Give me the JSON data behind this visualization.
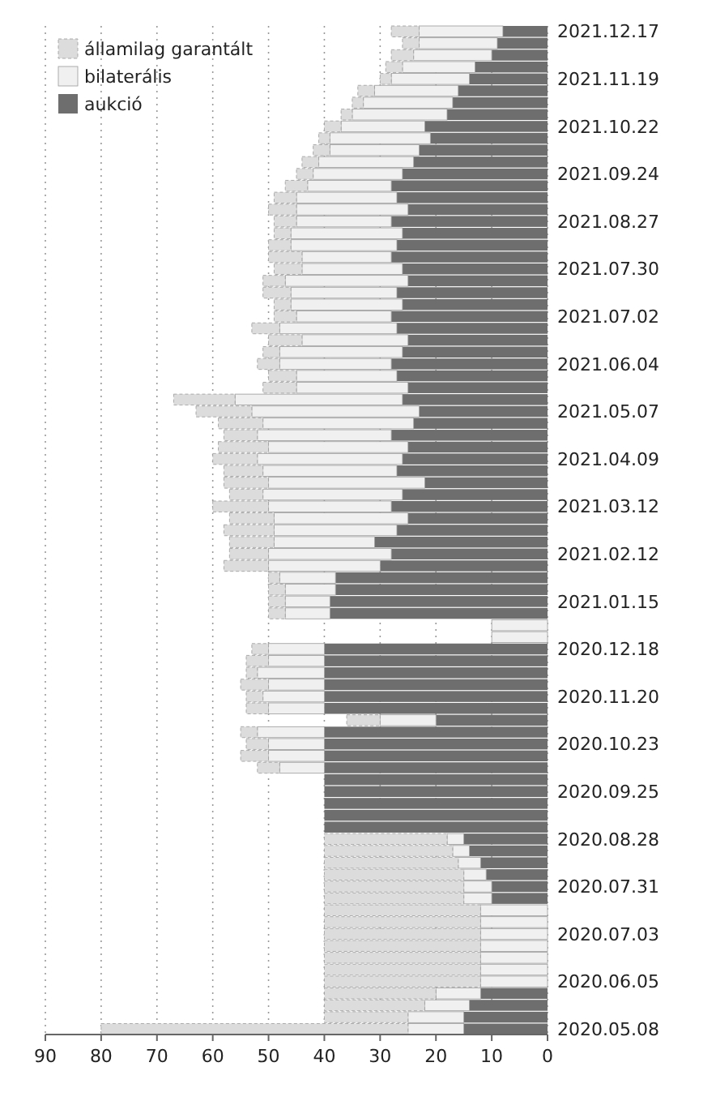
{
  "chart_data": {
    "type": "bar",
    "orientation": "horizontal",
    "stacked": true,
    "categories": [
      "2021.12.17",
      null,
      null,
      null,
      "2021.11.19",
      null,
      null,
      null,
      "2021.10.22",
      null,
      null,
      null,
      "2021.09.24",
      null,
      null,
      null,
      "2021.08.27",
      null,
      null,
      null,
      "2021.07.30",
      null,
      null,
      null,
      "2021.07.02",
      null,
      null,
      null,
      "2021.06.04",
      null,
      null,
      null,
      "2021.05.07",
      null,
      null,
      null,
      "2021.04.09",
      null,
      null,
      null,
      "2021.03.12",
      null,
      null,
      null,
      "2021.02.12",
      null,
      null,
      null,
      "2021.01.15",
      null,
      null,
      null,
      "2020.12.18",
      null,
      null,
      null,
      "2020.11.20",
      null,
      null,
      null,
      "2020.10.23",
      null,
      null,
      null,
      "2020.09.25",
      null,
      null,
      null,
      "2020.08.28",
      null,
      null,
      null,
      "2020.07.31",
      null,
      null,
      null,
      "2020.07.03",
      null,
      null,
      null,
      "2020.06.05",
      null,
      null,
      null,
      "2020.05.08"
    ],
    "series": [
      {
        "name": "aukció",
        "color": "#6e6e6e",
        "values": [
          8,
          9,
          10,
          13,
          14,
          16,
          17,
          18,
          22,
          21,
          23,
          24,
          26,
          28,
          27,
          25,
          28,
          26,
          27,
          28,
          26,
          25,
          27,
          26,
          28,
          27,
          25,
          26,
          28,
          27,
          25,
          26,
          23,
          24,
          28,
          25,
          26,
          27,
          22,
          26,
          28,
          25,
          27,
          31,
          28,
          30,
          38,
          38,
          39,
          39,
          0,
          0,
          40,
          40,
          40,
          40,
          40,
          40,
          20,
          40,
          40,
          40,
          40,
          40,
          40,
          40,
          40,
          40,
          15,
          14,
          12,
          11,
          10,
          10,
          0,
          0,
          0,
          0,
          0,
          0,
          0,
          12,
          14,
          15,
          15
        ]
      },
      {
        "name": "bilaterális",
        "color": "#f0f0f0",
        "values": [
          15,
          14,
          14,
          13,
          14,
          15,
          16,
          17,
          15,
          18,
          16,
          17,
          16,
          15,
          18,
          20,
          17,
          20,
          19,
          16,
          18,
          22,
          19,
          20,
          17,
          21,
          19,
          22,
          20,
          18,
          20,
          30,
          30,
          27,
          24,
          25,
          26,
          24,
          28,
          25,
          22,
          24,
          22,
          18,
          22,
          20,
          10,
          9,
          8,
          8,
          10,
          10,
          10,
          10,
          12,
          10,
          11,
          10,
          10,
          12,
          10,
          10,
          8,
          0,
          0,
          0,
          0,
          0,
          3,
          3,
          4,
          4,
          5,
          5,
          12,
          12,
          12,
          12,
          12,
          12,
          12,
          8,
          8,
          10,
          10
        ]
      },
      {
        "name": "államilag garantált",
        "color": "#dcdcdc",
        "values": [
          5,
          3,
          4,
          3,
          2,
          3,
          2,
          2,
          3,
          2,
          3,
          3,
          3,
          4,
          4,
          5,
          4,
          3,
          4,
          6,
          5,
          4,
          5,
          3,
          4,
          5,
          6,
          3,
          4,
          5,
          6,
          11,
          10,
          8,
          6,
          9,
          8,
          7,
          8,
          6,
          10,
          8,
          9,
          8,
          7,
          8,
          2,
          3,
          3,
          3,
          0,
          0,
          3,
          4,
          2,
          5,
          3,
          4,
          6,
          3,
          4,
          5,
          4,
          0,
          0,
          0,
          0,
          0,
          22,
          23,
          24,
          25,
          25,
          25,
          28,
          28,
          28,
          28,
          28,
          28,
          28,
          20,
          18,
          15,
          55
        ]
      }
    ],
    "xlim": [
      90,
      0
    ],
    "xticks": [
      90,
      80,
      70,
      60,
      50,
      40,
      30,
      20,
      10,
      0
    ],
    "grid": "x",
    "legend": "top left"
  }
}
